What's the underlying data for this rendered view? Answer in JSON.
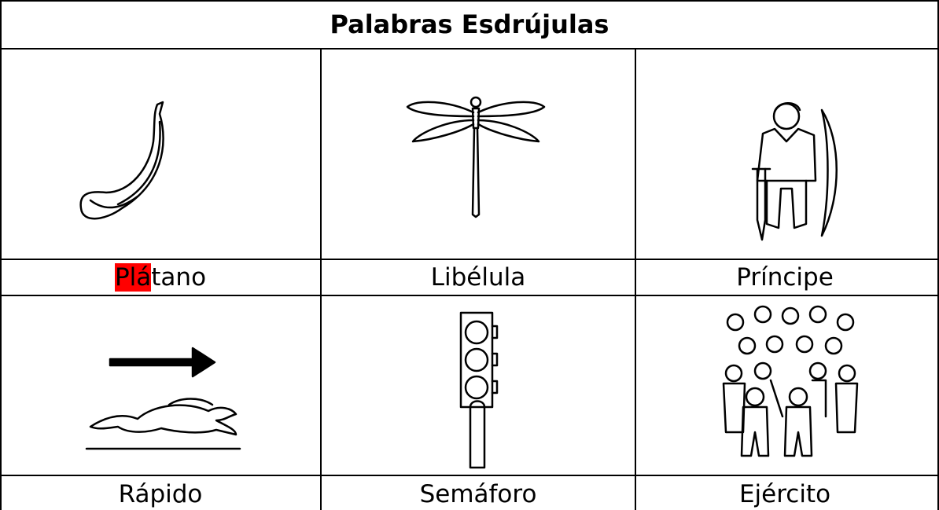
{
  "title": "Palabras Esdrújulas",
  "table": {
    "highlight_color": "#ff0000",
    "rows": [
      [
        {
          "parts": [
            "Plá",
            "tano"
          ],
          "highlight": 0
        },
        {
          "parts": [
            "Libélula"
          ]
        },
        {
          "parts": [
            "Príncipe"
          ]
        }
      ],
      [
        {
          "parts": [
            "Rápido"
          ]
        },
        {
          "parts": [
            "Semáforo"
          ]
        },
        {
          "parts": [
            "Ejército"
          ]
        }
      ]
    ]
  }
}
